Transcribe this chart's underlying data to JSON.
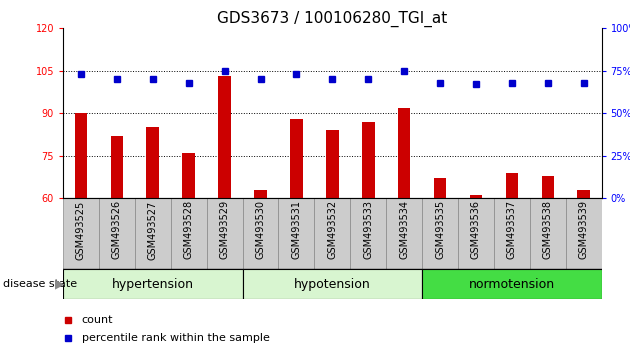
{
  "title": "GDS3673 / 100106280_TGI_at",
  "samples": [
    "GSM493525",
    "GSM493526",
    "GSM493527",
    "GSM493528",
    "GSM493529",
    "GSM493530",
    "GSM493531",
    "GSM493532",
    "GSM493533",
    "GSM493534",
    "GSM493535",
    "GSM493536",
    "GSM493537",
    "GSM493538",
    "GSM493539"
  ],
  "counts": [
    90,
    82,
    85,
    76,
    103,
    63,
    88,
    84,
    87,
    92,
    67,
    61,
    69,
    68,
    63
  ],
  "percentiles": [
    73,
    70,
    70,
    68,
    75,
    70,
    73,
    70,
    70,
    75,
    68,
    67,
    68,
    68,
    68
  ],
  "groups": [
    {
      "label": "hypertension",
      "start": 0,
      "end": 5,
      "color": "#d8f5d0"
    },
    {
      "label": "hypotension",
      "start": 5,
      "end": 10,
      "color": "#d8f5d0"
    },
    {
      "label": "normotension",
      "start": 10,
      "end": 15,
      "color": "#44dd44"
    }
  ],
  "ylim_left": [
    60,
    120
  ],
  "ylim_right": [
    0,
    100
  ],
  "yticks_left": [
    60,
    75,
    90,
    105,
    120
  ],
  "yticks_right": [
    0,
    25,
    50,
    75,
    100
  ],
  "bar_color": "#cc0000",
  "dot_color": "#0000cc",
  "bar_width": 0.35,
  "title_fontsize": 11,
  "tick_fontsize": 7,
  "legend_fontsize": 8,
  "group_label_fontsize": 9,
  "label_area_color": "#cccccc",
  "plot_bg": "#ffffff"
}
